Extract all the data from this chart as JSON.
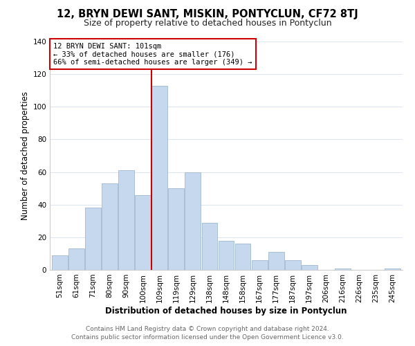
{
  "title": "12, BRYN DEWI SANT, MISKIN, PONTYCLUN, CF72 8TJ",
  "subtitle": "Size of property relative to detached houses in Pontyclun",
  "xlabel": "Distribution of detached houses by size in Pontyclun",
  "ylabel": "Number of detached properties",
  "categories": [
    "51sqm",
    "61sqm",
    "71sqm",
    "80sqm",
    "90sqm",
    "100sqm",
    "109sqm",
    "119sqm",
    "129sqm",
    "138sqm",
    "148sqm",
    "158sqm",
    "167sqm",
    "177sqm",
    "187sqm",
    "197sqm",
    "206sqm",
    "216sqm",
    "226sqm",
    "235sqm",
    "245sqm"
  ],
  "values": [
    9,
    13,
    38,
    53,
    61,
    46,
    113,
    50,
    60,
    29,
    18,
    16,
    6,
    11,
    6,
    3,
    0,
    1,
    0,
    0,
    1
  ],
  "bar_color": "#c5d8ed",
  "bar_edge_color": "#a0b8d0",
  "vline_x": 5.5,
  "vline_color": "#cc0000",
  "annotation_line1": "12 BRYN DEWI SANT: 101sqm",
  "annotation_line2": "← 33% of detached houses are smaller (176)",
  "annotation_line3": "66% of semi-detached houses are larger (349) →",
  "annotation_box_color": "#ffffff",
  "annotation_box_edge": "#cc0000",
  "ylim": [
    0,
    140
  ],
  "yticks": [
    0,
    20,
    40,
    60,
    80,
    100,
    120,
    140
  ],
  "footer1": "Contains HM Land Registry data © Crown copyright and database right 2024.",
  "footer2": "Contains public sector information licensed under the Open Government Licence v3.0.",
  "background_color": "#ffffff",
  "grid_color": "#dce6f0",
  "title_fontsize": 10.5,
  "subtitle_fontsize": 9,
  "axis_label_fontsize": 8.5,
  "tick_fontsize": 7.5,
  "footer_fontsize": 6.5
}
